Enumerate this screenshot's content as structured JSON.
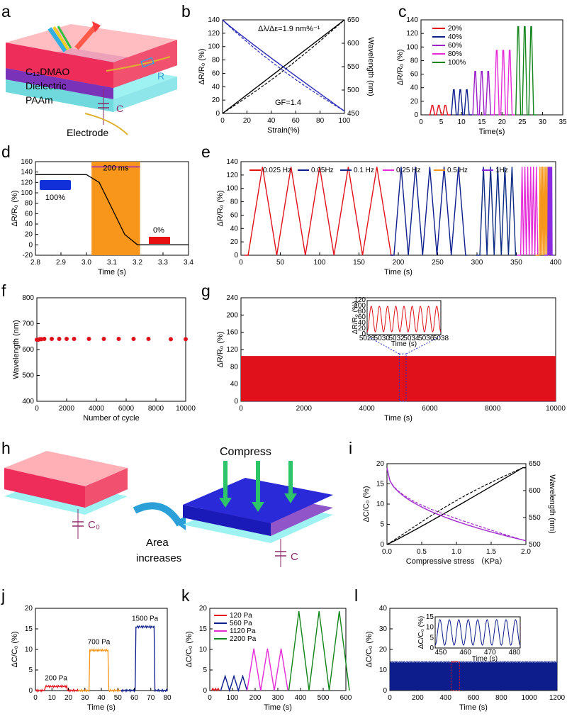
{
  "colors": {
    "red": "#e0111b",
    "darkblue": "#0d1e8c",
    "navy": "#0b2a82",
    "purple": "#9b1fc6",
    "magenta": "#e52ad8",
    "green": "#11841a",
    "orange": "#f7961a",
    "violet": "#8a2be2",
    "wlblue": "#2a2ab8",
    "wlpurple": "#a12ccd"
  },
  "panels": {
    "a": {
      "letter": "a",
      "layers": [
        "C₁₂DMAO",
        "Dielectric",
        "PAAm"
      ],
      "labels": {
        "r": "R",
        "c": "C",
        "electrode": "Electrode"
      }
    },
    "b": {
      "letter": "b",
      "xlabel": "Strain(%)",
      "ylabel": "ΔR/R₀ (%)",
      "y2label": "Wavelength (nm)",
      "annotation": "Δλ/Δε=1.9 nm%⁻¹",
      "gf": "GF=1.4",
      "xticks": [
        "0",
        "20",
        "40",
        "60",
        "80",
        "100"
      ],
      "yticks": [
        "0",
        "20",
        "40",
        "60",
        "80",
        "100",
        "120",
        "140"
      ],
      "y2ticks": [
        "450",
        "500",
        "550",
        "600",
        "650"
      ]
    },
    "c": {
      "letter": "c",
      "xlabel": "Time(s)",
      "ylabel": "ΔR/R₀ (%)",
      "xticks": [
        "0",
        "5",
        "10",
        "15",
        "20",
        "25",
        "30",
        "35"
      ],
      "yticks": [
        "0",
        "20",
        "40",
        "60",
        "80",
        "100",
        "120",
        "140"
      ],
      "legend": [
        "20%",
        "40%",
        "60%",
        "80%",
        "100%"
      ]
    },
    "d": {
      "letter": "d",
      "xlabel": "Time (s)",
      "ylabel": "ΔR/R₀ (%)",
      "xticks": [
        "2.8",
        "2.9",
        "3.0",
        "3.1",
        "3.2",
        "3.3",
        "3.4"
      ],
      "yticks": [
        "-20",
        "0",
        "20",
        "40",
        "60",
        "80",
        "100",
        "120",
        "140",
        "160"
      ],
      "span": "200 ms",
      "start_label": "100%",
      "end_label": "0%"
    },
    "e": {
      "letter": "e",
      "xlabel": "Time (s)",
      "ylabel": "ΔR/R₀ (%)",
      "xticks": [
        "0",
        "50",
        "100",
        "150",
        "200",
        "250",
        "300",
        "350",
        "400"
      ],
      "yticks": [
        "0",
        "20",
        "40",
        "60",
        "80",
        "100",
        "120",
        "140"
      ],
      "legend": [
        "0.025 Hz",
        "0.05Hz",
        "0.1 Hz",
        "0.25 Hz",
        "0.5 Hz",
        "1Hz"
      ]
    },
    "f": {
      "letter": "f",
      "xlabel": "Number of cycle",
      "ylabel": "Wavelength (nm)",
      "xticks": [
        "0",
        "2000",
        "4000",
        "6000",
        "8000",
        "10000"
      ],
      "yticks": [
        "400",
        "500",
        "600",
        "700",
        "800"
      ]
    },
    "g": {
      "letter": "g",
      "xlabel": "Time (s)",
      "ylabel": "ΔR/R₀ (%)",
      "xticks": [
        "0",
        "2000",
        "4000",
        "6000",
        "8000",
        "10000"
      ],
      "yticks": [
        "0",
        "40",
        "80",
        "120",
        "160",
        "200",
        "240"
      ],
      "inset": {
        "xlabel": "Time (s)",
        "ylabel": "ΔR/R₀ (%)",
        "xticks": [
          "5028",
          "5030",
          "5032",
          "5034",
          "5036",
          "5038"
        ],
        "yticks": [
          "0",
          "20",
          "40",
          "60",
          "80",
          "100",
          "120"
        ]
      }
    },
    "h": {
      "letter": "h",
      "compress": "Compress",
      "area": "Area increases",
      "area1": "Area",
      "area2": "increases",
      "c0": "C₀",
      "c": "C"
    },
    "i": {
      "letter": "i",
      "xlabel": "Compressive stress （KPa）",
      "ylabel": "ΔC/C₀ (%)",
      "y2label": "Wavelength (nm)",
      "xticks": [
        "0.0",
        "0.5",
        "1.0",
        "1.5",
        "2.0"
      ],
      "yticks": [
        "0",
        "5",
        "10",
        "15",
        "20"
      ],
      "y2ticks": [
        "500",
        "550",
        "600",
        "650"
      ]
    },
    "j": {
      "letter": "j",
      "xlabel": "Time (s)",
      "ylabel": "ΔC/C₀ (%)",
      "xticks": [
        "0",
        "10",
        "20",
        "30",
        "40",
        "50",
        "60",
        "70",
        "80"
      ],
      "yticks": [
        "0",
        "5",
        "10",
        "15",
        "20"
      ],
      "labels": [
        "200 Pa",
        "700 Pa",
        "1500 Pa"
      ]
    },
    "k": {
      "letter": "k",
      "xlabel": "Time (s)",
      "ylabel": "ΔC/C₀ (%)",
      "xticks": [
        "0",
        "100",
        "200",
        "300",
        "400",
        "500",
        "600"
      ],
      "yticks": [
        "0",
        "5",
        "10",
        "15",
        "20"
      ],
      "legend": [
        "120 Pa",
        "560 Pa",
        "1120 Pa",
        "2200 Pa"
      ]
    },
    "l": {
      "letter": "l",
      "xlabel": "Time (s)",
      "ylabel": "ΔC/C₀ (%)",
      "xticks": [
        "0",
        "200",
        "400",
        "600",
        "800",
        "1000",
        "1200"
      ],
      "yticks": [
        "0",
        "10",
        "20",
        "30",
        "40"
      ],
      "inset": {
        "xlabel": "Time (s)",
        "ylabel": "ΔC/C₀ (%)",
        "xticks": [
          "450",
          "460",
          "470",
          "480"
        ],
        "yticks": [
          "0",
          "5",
          "10",
          "15"
        ]
      }
    }
  },
  "chart_data": [
    {
      "panel": "b",
      "type": "line",
      "x": [
        0,
        20,
        40,
        60,
        80,
        100
      ],
      "series": [
        {
          "values": [
            0,
            20,
            40,
            70,
            100,
            140
          ]
        },
        {
          "values": [
            650,
            610,
            570,
            535,
            500,
            455
          ]
        }
      ],
      "xlim": [
        0,
        100
      ],
      "ylim": [
        0,
        140
      ],
      "y2lim": [
        450,
        650
      ]
    },
    {
      "panel": "c",
      "type": "line",
      "series": [
        {
          "name": "20%",
          "peak": 14
        },
        {
          "name": "40%",
          "peak": 37
        },
        {
          "name": "60%",
          "peak": 64
        },
        {
          "name": "80%",
          "peak": 95
        },
        {
          "name": "100%",
          "peak": 130
        }
      ],
      "xlim": [
        0,
        35
      ],
      "ylim": [
        0,
        140
      ]
    },
    {
      "panel": "d",
      "type": "line",
      "x": [
        2.8,
        3.0,
        3.05,
        3.1,
        3.15,
        3.2,
        3.4
      ],
      "values": [
        135,
        135,
        120,
        70,
        20,
        0,
        0
      ],
      "xlim": [
        2.8,
        3.4
      ],
      "ylim": [
        -20,
        160
      ]
    },
    {
      "panel": "e",
      "type": "line",
      "series": [
        {
          "name": "0.025 Hz"
        },
        {
          "name": "0.05Hz"
        },
        {
          "name": "0.1 Hz"
        },
        {
          "name": "0.25 Hz"
        },
        {
          "name": "0.5 Hz"
        },
        {
          "name": "1Hz"
        }
      ],
      "peak": 137,
      "xlim": [
        0,
        440
      ],
      "ylim": [
        0,
        145
      ]
    },
    {
      "panel": "f",
      "type": "scatter",
      "x": [
        0,
        100,
        200,
        300,
        500,
        1000,
        1500,
        2000,
        2500,
        3500,
        4500,
        5500,
        6500,
        7500,
        9000,
        10000
      ],
      "values": [
        638,
        638,
        640,
        640,
        641,
        641,
        641,
        641,
        641,
        641,
        641,
        641,
        641,
        641,
        640,
        640
      ],
      "xlim": [
        0,
        10000
      ],
      "ylim": [
        400,
        800
      ]
    },
    {
      "panel": "g",
      "type": "area",
      "peak": 105,
      "xlim": [
        0,
        10000
      ],
      "ylim": [
        0,
        240
      ]
    },
    {
      "panel": "i",
      "type": "line",
      "xlim": [
        0,
        2.3
      ],
      "ylim": [
        0,
        20
      ],
      "y2lim": [
        480,
        660
      ]
    },
    {
      "panel": "j",
      "type": "line",
      "series": [
        {
          "name": "200 Pa",
          "value": 1
        },
        {
          "name": "700 Pa",
          "value": 9.8
        },
        {
          "name": "1500 Pa",
          "value": 15.5
        }
      ],
      "xlim": [
        0,
        80
      ],
      "ylim": [
        0,
        20
      ]
    },
    {
      "panel": "k",
      "type": "line",
      "series": [
        {
          "name": "120 Pa",
          "peak": 0.5
        },
        {
          "name": "560 Pa",
          "peak": 3.5
        },
        {
          "name": "1120 Pa",
          "peak": 10.2
        },
        {
          "name": "2200 Pa",
          "peak": 19.3
        }
      ],
      "xlim": [
        0,
        620
      ],
      "ylim": [
        0,
        20
      ]
    },
    {
      "panel": "l",
      "type": "area",
      "peak": 14,
      "xlim": [
        0,
        1200
      ],
      "ylim": [
        0,
        40
      ]
    }
  ]
}
